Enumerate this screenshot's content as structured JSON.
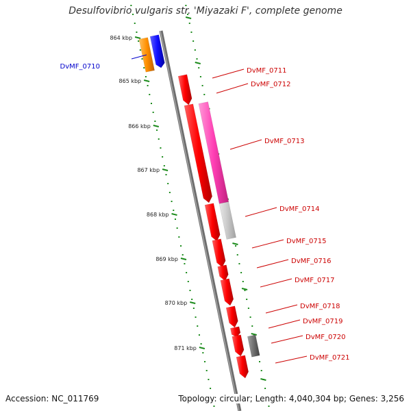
{
  "title": "Desulfovibrio vulgaris str. 'Miyazaki F', complete genome",
  "footer": {
    "accession": "Accession: NC_011769",
    "summary": "Topology: circular; Length: 4,040,304 bp; Genes: 3,256"
  },
  "kbp_labels": [
    "864 kbp",
    "865 kbp",
    "866 kbp",
    "867 kbp",
    "868 kbp",
    "869 kbp",
    "870 kbp",
    "871 kbp"
  ],
  "genes": [
    {
      "label": "DvMF_0710",
      "color": "#0000cc"
    },
    {
      "label": "DvMF_0711",
      "color": "#cc0000"
    },
    {
      "label": "DvMF_0712",
      "color": "#cc0000"
    },
    {
      "label": "DvMF_0713",
      "color": "#cc0000"
    },
    {
      "label": "DvMF_0714",
      "color": "#cc0000"
    },
    {
      "label": "DvMF_0715",
      "color": "#cc0000"
    },
    {
      "label": "DvMF_0716",
      "color": "#cc0000"
    },
    {
      "label": "DvMF_0717",
      "color": "#cc0000"
    },
    {
      "label": "DvMF_0718",
      "color": "#cc0000"
    },
    {
      "label": "DvMF_0719",
      "color": "#cc0000"
    },
    {
      "label": "DvMF_0720",
      "color": "#cc0000"
    },
    {
      "label": "DvMF_0721",
      "color": "#cc0000"
    }
  ],
  "colors": {
    "backbone": "#888888",
    "tick": "#1a8a1a",
    "red_feature": "#ff1010",
    "blue_feature": "#1010ff",
    "orange_feature": "#ff9000",
    "magenta_feature": "#ff3fb4",
    "lightgray_feature": "#c8c8c8",
    "darkgray_feature": "#707070"
  }
}
